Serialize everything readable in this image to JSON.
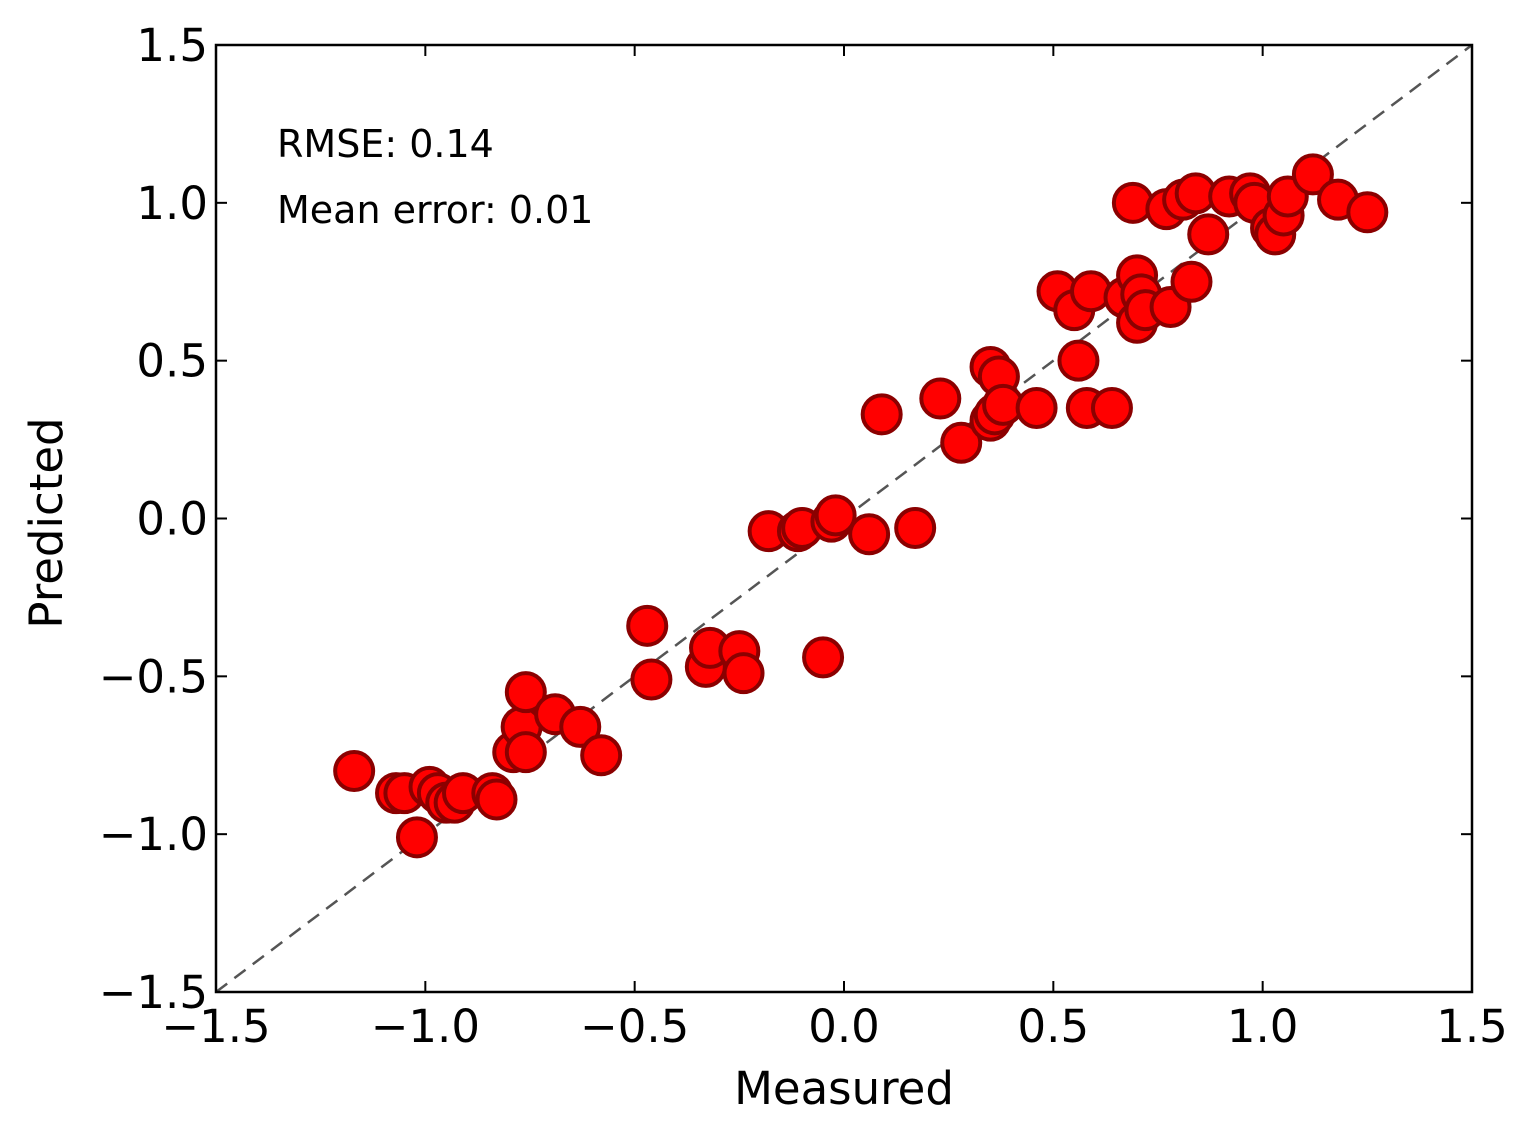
{
  "chart_data": {
    "type": "scatter",
    "xlabel": "Measured",
    "ylabel": "Predicted",
    "xlim": [
      -1.5,
      1.5
    ],
    "ylim": [
      -1.5,
      1.5
    ],
    "x_ticks": [
      "−1.5",
      "−1.0",
      "−0.5",
      "0.0",
      "0.5",
      "1.0",
      "1.5"
    ],
    "y_ticks": [
      "−1.5",
      "−1.0",
      "−0.5",
      "0.0",
      "0.5",
      "1.0",
      "1.5"
    ],
    "tick_values": [
      -1.5,
      -1.0,
      -0.5,
      0.0,
      0.5,
      1.0,
      1.5
    ],
    "annotations": {
      "rmse": "RMSE: 0.14",
      "mean_error": "Mean error: 0.01"
    },
    "reference_line": {
      "style": "dashed",
      "from": [
        -1.5,
        -1.5
      ],
      "to": [
        1.5,
        1.5
      ],
      "color": "#555555"
    },
    "marker_color": "#ff0000",
    "marker_edge_color": "#8b0000",
    "grid": false,
    "points": [
      [
        -1.17,
        -0.8
      ],
      [
        -1.07,
        -0.87
      ],
      [
        -1.05,
        -0.87
      ],
      [
        -1.02,
        -1.01
      ],
      [
        -0.99,
        -0.85
      ],
      [
        -0.97,
        -0.87
      ],
      [
        -0.95,
        -0.9
      ],
      [
        -0.93,
        -0.9
      ],
      [
        -0.91,
        -0.87
      ],
      [
        -0.84,
        -0.87
      ],
      [
        -0.83,
        -0.89
      ],
      [
        -0.79,
        -0.74
      ],
      [
        -0.77,
        -0.66
      ],
      [
        -0.76,
        -0.55
      ],
      [
        -0.76,
        -0.74
      ],
      [
        -0.69,
        -0.62
      ],
      [
        -0.63,
        -0.66
      ],
      [
        -0.58,
        -0.75
      ],
      [
        -0.47,
        -0.34
      ],
      [
        -0.46,
        -0.51
      ],
      [
        -0.33,
        -0.47
      ],
      [
        -0.32,
        -0.41
      ],
      [
        -0.25,
        -0.42
      ],
      [
        -0.24,
        -0.49
      ],
      [
        -0.05,
        -0.44
      ],
      [
        -0.18,
        -0.04
      ],
      [
        -0.11,
        -0.04
      ],
      [
        -0.1,
        -0.03
      ],
      [
        -0.03,
        -0.01
      ],
      [
        -0.02,
        0.01
      ],
      [
        0.06,
        -0.05
      ],
      [
        0.17,
        -0.03
      ],
      [
        0.09,
        0.33
      ],
      [
        0.23,
        0.38
      ],
      [
        0.28,
        0.24
      ],
      [
        0.35,
        0.31
      ],
      [
        0.35,
        0.48
      ],
      [
        0.36,
        0.33
      ],
      [
        0.37,
        0.45
      ],
      [
        0.38,
        0.36
      ],
      [
        0.46,
        0.35
      ],
      [
        0.51,
        0.72
      ],
      [
        0.55,
        0.66
      ],
      [
        0.56,
        0.5
      ],
      [
        0.58,
        0.35
      ],
      [
        0.59,
        0.72
      ],
      [
        0.64,
        0.35
      ],
      [
        0.67,
        0.7
      ],
      [
        0.7,
        0.77
      ],
      [
        0.7,
        0.62
      ],
      [
        0.71,
        0.71
      ],
      [
        0.72,
        0.66
      ],
      [
        0.78,
        0.67
      ],
      [
        0.83,
        0.75
      ],
      [
        0.69,
        1.0
      ],
      [
        0.77,
        0.98
      ],
      [
        0.81,
        1.01
      ],
      [
        0.84,
        1.03
      ],
      [
        0.87,
        0.9
      ],
      [
        0.92,
        1.02
      ],
      [
        0.97,
        1.03
      ],
      [
        0.98,
        1.0
      ],
      [
        1.02,
        0.92
      ],
      [
        1.03,
        0.9
      ],
      [
        1.05,
        0.96
      ],
      [
        1.06,
        1.02
      ],
      [
        1.12,
        1.09
      ],
      [
        1.18,
        1.01
      ],
      [
        1.25,
        0.97
      ]
    ]
  }
}
